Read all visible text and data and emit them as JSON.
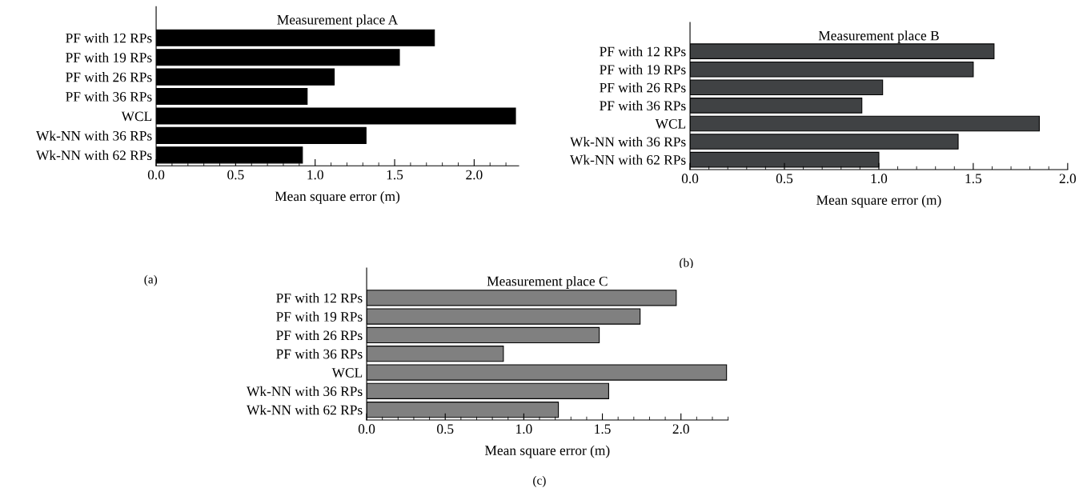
{
  "chart_data": [
    {
      "type": "bar",
      "orientation": "horizontal",
      "title": "Measurement place A",
      "xlabel": "Mean square error (m)",
      "annotations": [
        "(a)"
      ],
      "categories": [
        "PF with 12 RPs",
        "PF with 19 RPs",
        "PF with 26 RPs",
        "PF with 36 RPs",
        "WCL",
        "Wk-NN with 36 RPs",
        "Wk-NN with 62 RPs"
      ],
      "values": [
        1.75,
        1.53,
        1.12,
        0.95,
        2.26,
        1.32,
        0.92
      ],
      "color": "#000000",
      "xlim": [
        0,
        2.28
      ],
      "xticks": [
        {
          "value": 0,
          "label": "0.0"
        },
        {
          "value": 0.5,
          "label": "0.5"
        },
        {
          "value": 1,
          "label": "1.0"
        },
        {
          "value": 1.5,
          "label": "1.5"
        },
        {
          "value": 2,
          "label": "2.0"
        }
      ],
      "grid": false,
      "legend": false
    },
    {
      "type": "bar",
      "orientation": "horizontal",
      "title": "Measurement place B",
      "xlabel": "Mean square error (m)",
      "annotations": [
        "(b)"
      ],
      "categories": [
        "PF with 12 RPs",
        "PF with 19 RPs",
        "PF with 26 RPs",
        "PF with 36 RPs",
        "WCL",
        "Wk-NN with 36 RPs",
        "Wk-NN with 62 RPs"
      ],
      "values": [
        1.61,
        1.5,
        1.02,
        0.91,
        1.85,
        1.42,
        1.0
      ],
      "color": "#404244",
      "xlim": [
        0,
        2.0
      ],
      "xticks": [
        {
          "value": 0,
          "label": "0.0"
        },
        {
          "value": 0.5,
          "label": "0.5"
        },
        {
          "value": 1,
          "label": "1.0"
        },
        {
          "value": 1.5,
          "label": "1.5"
        },
        {
          "value": 2,
          "label": "2.0"
        }
      ],
      "grid": false,
      "legend": false
    },
    {
      "type": "bar",
      "orientation": "horizontal",
      "title": "Measurement place C",
      "xlabel": "Mean square error (m)",
      "annotations": [
        "(c)"
      ],
      "categories": [
        "PF with 12 RPs",
        "PF with 19 RPs",
        "PF with 26 RPs",
        "PF with 36 RPs",
        "WCL",
        "Wk-NN with 36 RPs",
        "Wk-NN with 62 RPs"
      ],
      "values": [
        1.97,
        1.74,
        1.48,
        0.87,
        2.29,
        1.54,
        1.22
      ],
      "color": "#808080",
      "xlim": [
        0,
        2.3
      ],
      "xticks": [
        {
          "value": 0,
          "label": "0.0"
        },
        {
          "value": 0.5,
          "label": "0.5"
        },
        {
          "value": 1,
          "label": "1.0"
        },
        {
          "value": 1.5,
          "label": "1.5"
        },
        {
          "value": 2,
          "label": "2.0"
        }
      ],
      "grid": false,
      "legend": false
    }
  ]
}
